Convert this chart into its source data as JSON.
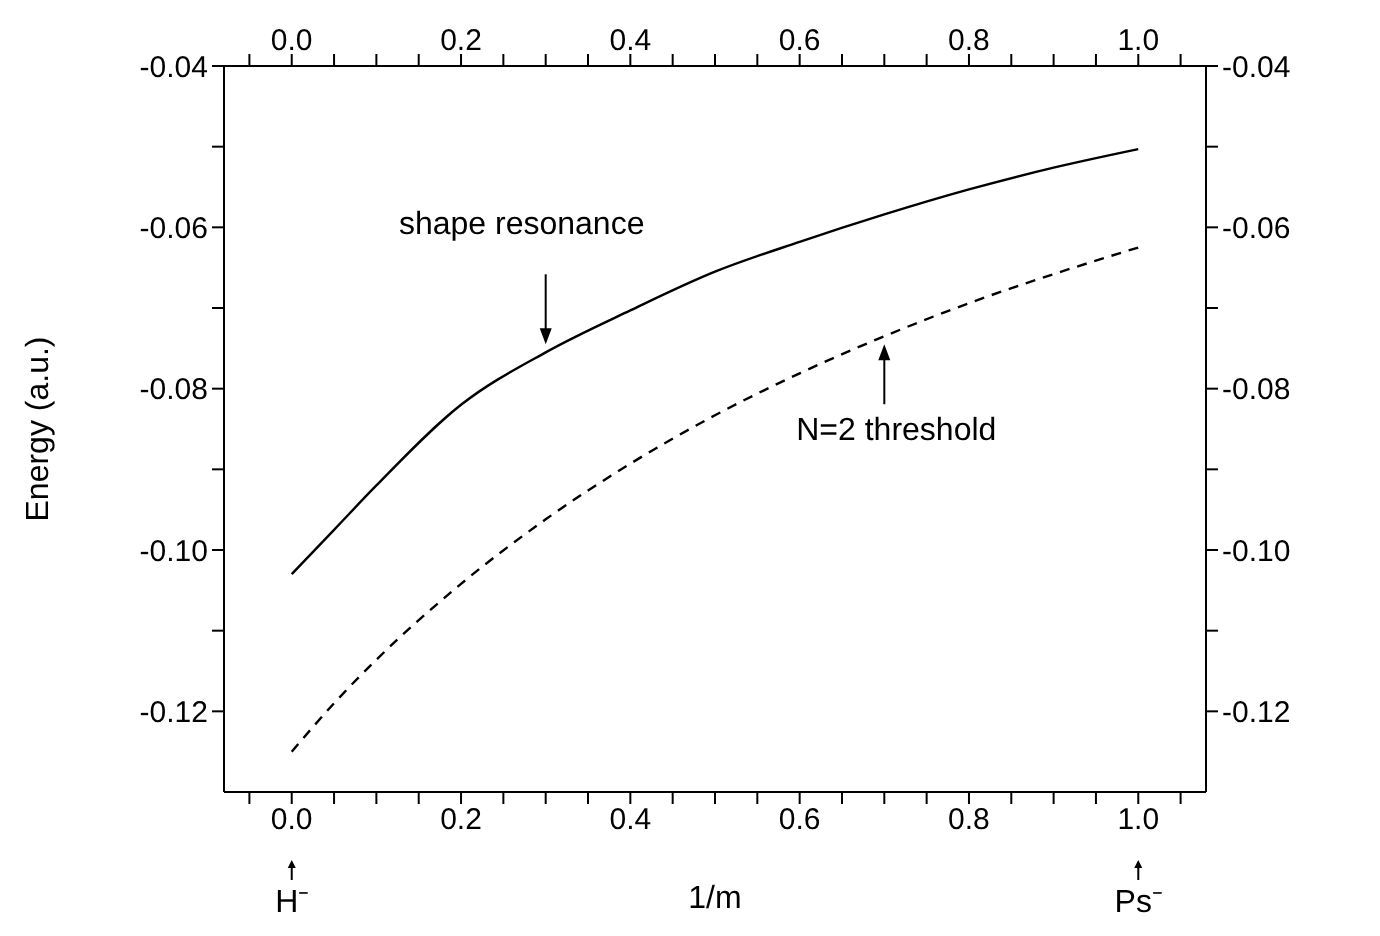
{
  "chart_data": {
    "type": "line",
    "xlabel": "1/m",
    "ylabel": "Energy (a.u.)",
    "xlim": [
      -0.08,
      1.08
    ],
    "xticks": [
      {
        "value": -0.05,
        "label": null
      },
      {
        "value": 0,
        "label": "0.0"
      },
      {
        "value": 0.05,
        "label": null
      },
      0.2,
      {
        "value": 0.1,
        "label": null
      },
      {
        "value": 0.15,
        "label": null
      },
      {
        "value": 0.25,
        "label": null
      },
      {
        "value": 0.3,
        "label": null
      },
      {
        "value": 0.35,
        "label": null
      },
      0.4,
      {
        "value": 0.45,
        "label": null
      },
      {
        "value": 0.5,
        "label": null
      },
      {
        "value": 0.55,
        "label": null
      },
      0.6,
      {
        "value": 0.65,
        "label": null
      },
      {
        "value": 0.7,
        "label": null
      },
      {
        "value": 0.75,
        "label": null
      },
      0.8,
      {
        "value": 0.85,
        "label": null
      },
      {
        "value": 0.9,
        "label": null
      },
      {
        "value": 0.95,
        "label": null
      },
      {
        "value": 1,
        "label": "1.0"
      },
      {
        "value": 1.05,
        "label": null
      }
    ],
    "x2lim": [
      -0.08,
      1.08
    ],
    "x2ticks": [
      {
        "value": -0.05,
        "label": null
      },
      {
        "value": 0,
        "label": "0.0"
      },
      {
        "value": 0.05,
        "label": null
      },
      0.2,
      {
        "value": 0.1,
        "label": null
      },
      {
        "value": 0.15,
        "label": null
      },
      {
        "value": 0.25,
        "label": null
      },
      {
        "value": 0.3,
        "label": null
      },
      {
        "value": 0.35,
        "label": null
      },
      0.4,
      {
        "value": 0.45,
        "label": null
      },
      {
        "value": 0.5,
        "label": null
      },
      {
        "value": 0.55,
        "label": null
      },
      0.6,
      {
        "value": 0.65,
        "label": null
      },
      {
        "value": 0.7,
        "label": null
      },
      {
        "value": 0.75,
        "label": null
      },
      0.8,
      {
        "value": 0.85,
        "label": null
      },
      {
        "value": 0.9,
        "label": null
      },
      {
        "value": 0.95,
        "label": null
      },
      {
        "value": 1,
        "label": "1.0"
      },
      {
        "value": 1.05,
        "label": null
      }
    ],
    "ylim": [
      -0.13,
      -0.04
    ],
    "yticks": [
      -0.12,
      {
        "value": -0.11,
        "label": null
      },
      {
        "value": -0.1,
        "label": "-0.10"
      },
      {
        "value": -0.09,
        "label": null
      },
      -0.08,
      {
        "value": -0.07,
        "label": null
      },
      -0.06,
      {
        "value": -0.05,
        "label": null
      },
      -0.04
    ],
    "y2lim": [
      -0.13,
      -0.04
    ],
    "y2ticks": [
      -0.12,
      {
        "value": -0.11,
        "label": null
      },
      {
        "value": -0.1,
        "label": "-0.10"
      },
      {
        "value": -0.09,
        "label": null
      },
      -0.08,
      {
        "value": -0.07,
        "label": null
      },
      -0.06,
      {
        "value": -0.05,
        "label": null
      },
      -0.04
    ],
    "x": [
      0,
      0.05,
      0.1,
      0.2,
      0.3,
      0.4,
      0.5,
      0.6,
      0.7,
      0.8,
      0.9,
      1.0
    ],
    "series": [
      {
        "color": "#000000",
        "line_style": "solid",
        "values": [
          -0.103,
          -0.0975,
          -0.092,
          -0.082,
          -0.0755,
          -0.0703,
          -0.0655,
          -0.0618,
          -0.0584,
          -0.0553,
          -0.0526,
          -0.0503
        ]
      },
      {
        "color": "#000000",
        "line_style": "dashed",
        "values": [
          -0.125,
          -0.119,
          -0.1136,
          -0.1042,
          -0.0962,
          -0.0893,
          -0.0833,
          -0.0781,
          -0.0735,
          -0.0694,
          -0.0658,
          -0.0625
        ]
      }
    ],
    "annotations": [
      {
        "text": "shape resonance",
        "x": 0.3,
        "y": -0.0745
      },
      {
        "text": "N=2 threshold",
        "x": 0.7,
        "y": -0.0735
      },
      {
        "text": "H⁻",
        "x": 0.0
      },
      {
        "text": "Ps⁻",
        "x": 1.0
      }
    ]
  }
}
